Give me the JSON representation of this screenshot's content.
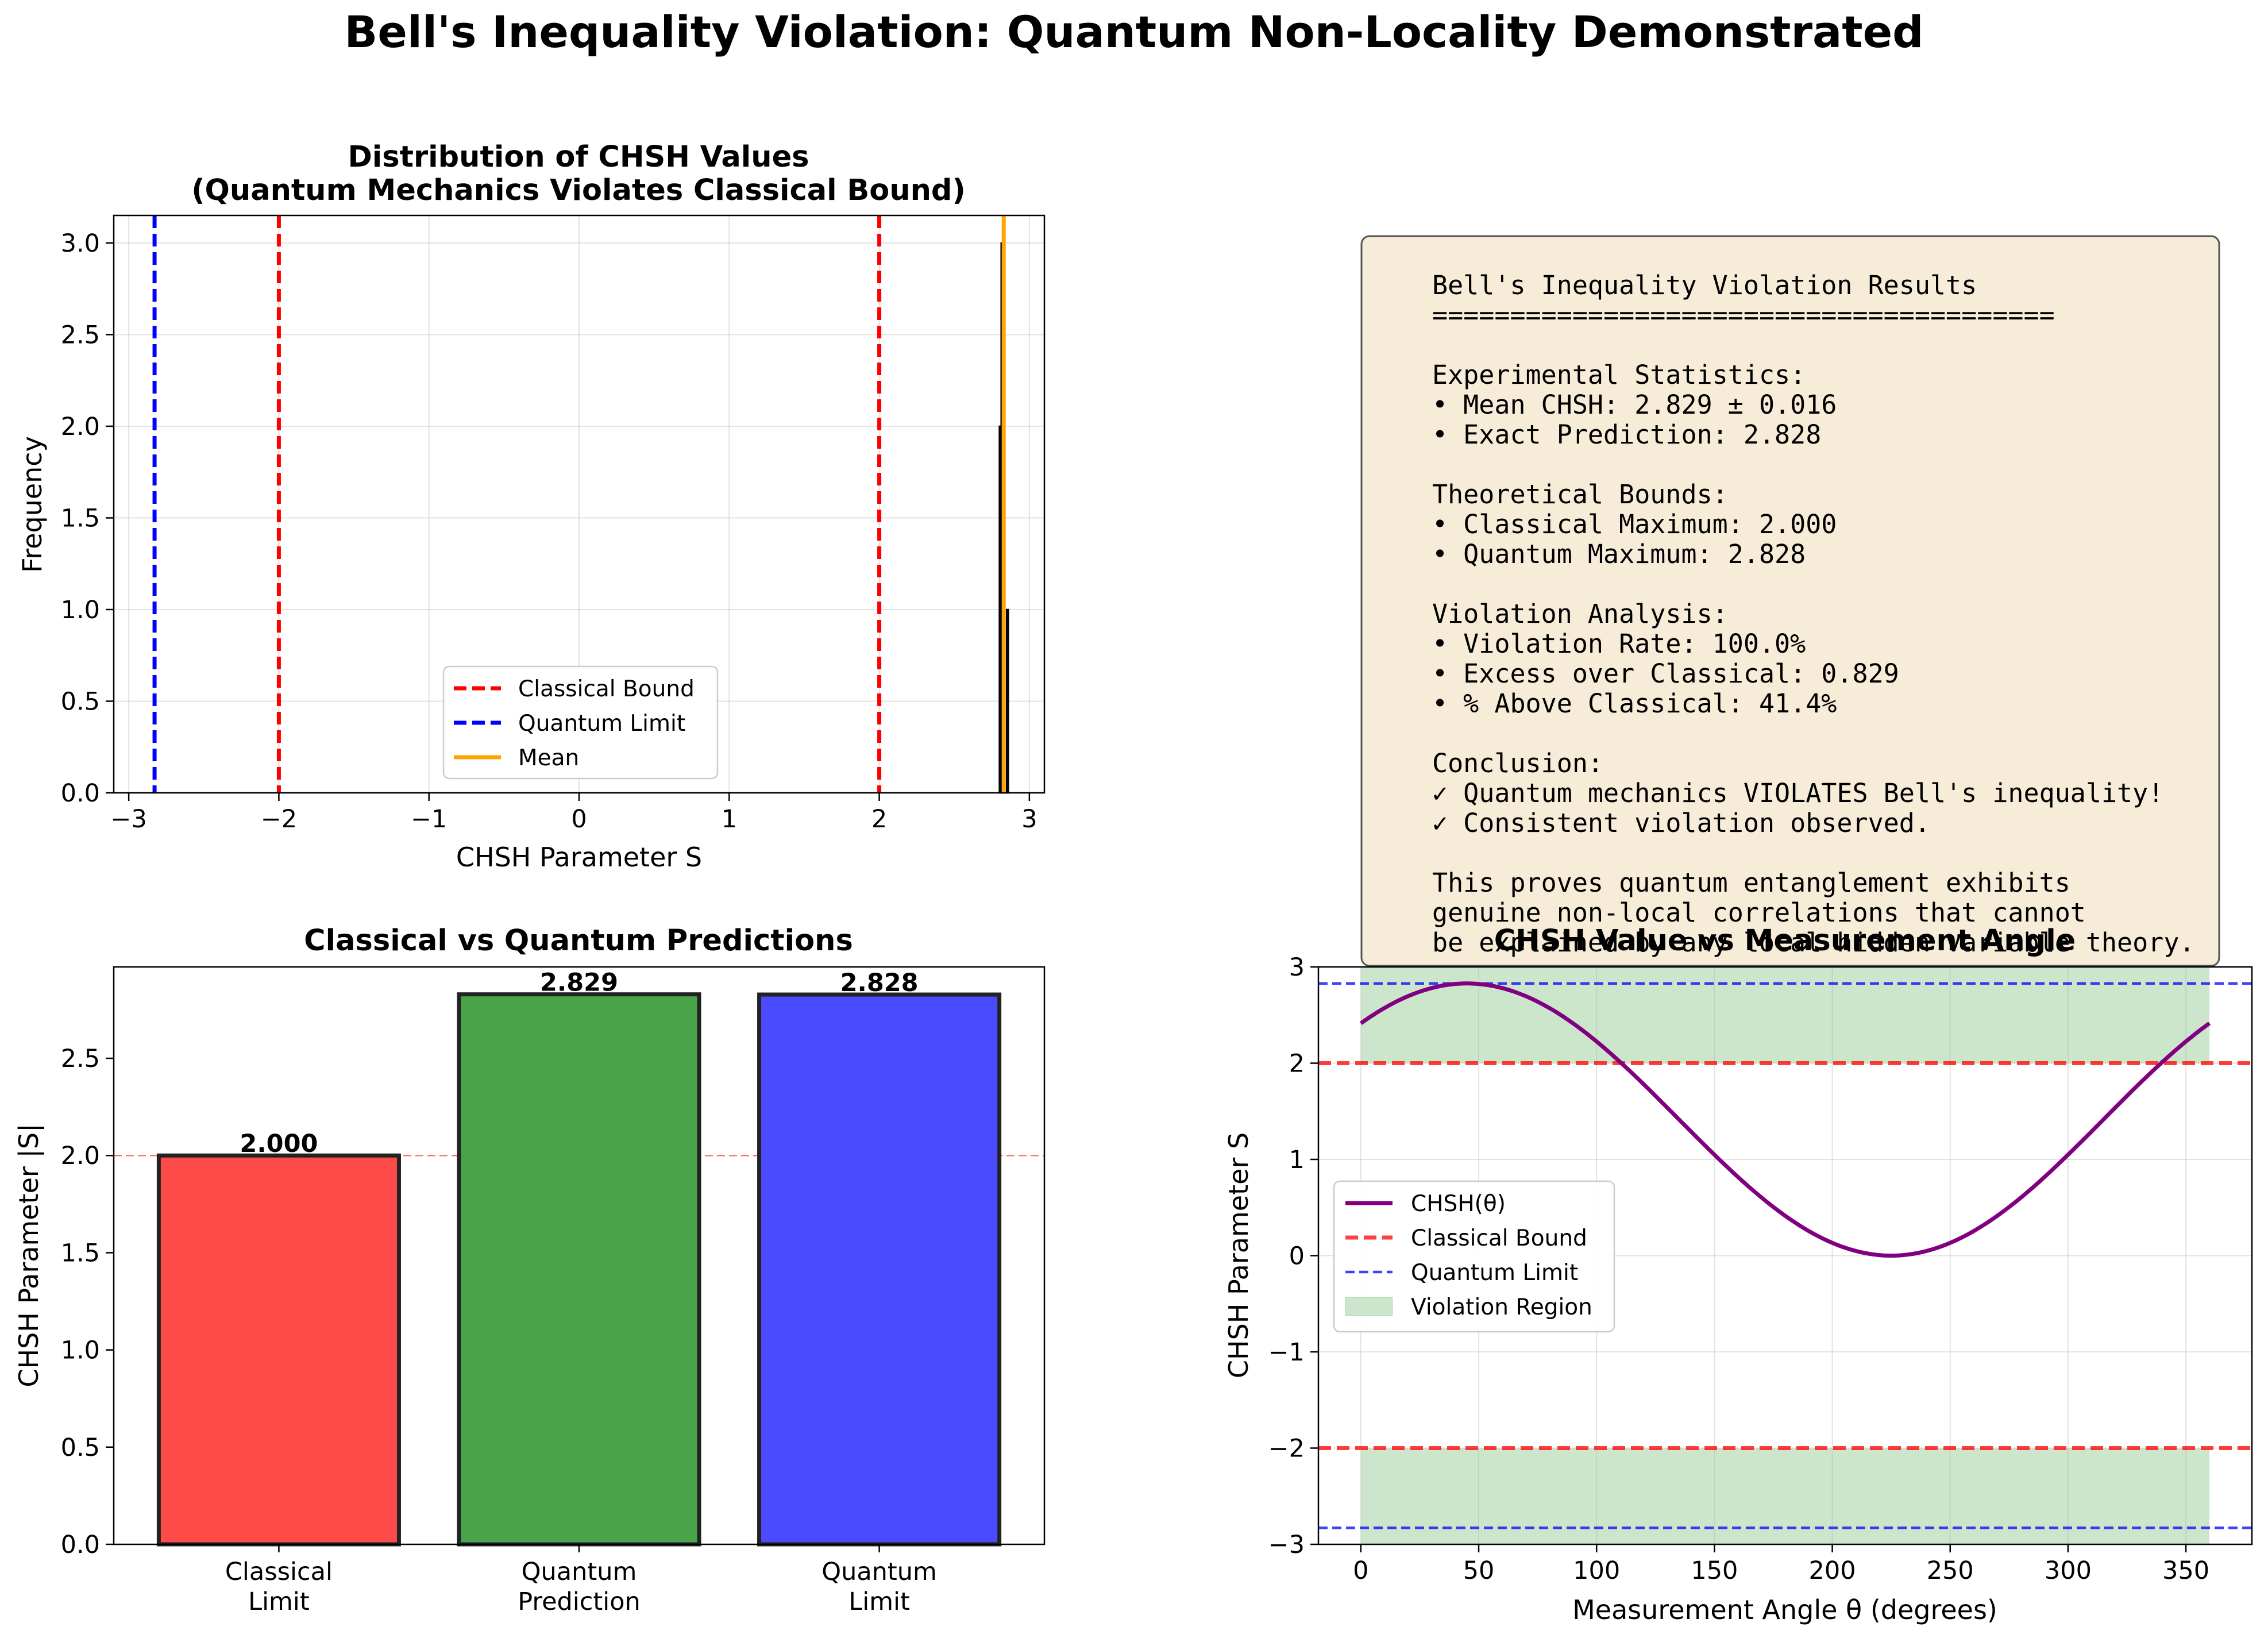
{
  "figure_title": "Bell's Inequality Violation: Quantum Non-Locality Demonstrated",
  "colors": {
    "classical": "#ff0000",
    "quantum": "#0000ff",
    "mean": "#ffa500",
    "curve": "#800080",
    "violation_fill": "#008000",
    "bar_classical": "#ff4a4a",
    "bar_prediction": "#4aa54a",
    "bar_limit": "#4a4aff",
    "info_bg": "#f7ecd8"
  },
  "chart_data": [
    {
      "type": "histogram",
      "title": "Distribution of CHSH Values",
      "subtitle": "(Quantum Mechanics Violates Classical Bound)",
      "xlabel": "CHSH Parameter S",
      "ylabel": "Frequency",
      "xlim": [
        -3.1,
        3.1
      ],
      "ylim": [
        0,
        3.15
      ],
      "xticks": [
        -3,
        -2,
        -1,
        0,
        1,
        2,
        3
      ],
      "yticks": [
        0.0,
        0.5,
        1.0,
        1.5,
        2.0,
        2.5,
        3.0
      ],
      "grid": true,
      "bins": [
        {
          "x0": 2.8,
          "x1": 2.812,
          "count": 2
        },
        {
          "x0": 2.812,
          "x1": 2.824,
          "count": 3
        },
        {
          "x0": 2.824,
          "x1": 2.836,
          "count": 3
        },
        {
          "x0": 2.836,
          "x1": 2.848,
          "count": 0
        },
        {
          "x0": 2.848,
          "x1": 2.86,
          "count": 1
        }
      ],
      "vlines": [
        {
          "x": -2.0,
          "series": "Classical Bound",
          "style": "dashed"
        },
        {
          "x": 2.0,
          "series": "Classical Bound",
          "style": "dashed"
        },
        {
          "x": -2.828,
          "series": "Quantum Limit",
          "style": "dashed"
        },
        {
          "x": 2.829,
          "series": "Mean",
          "style": "solid"
        }
      ],
      "legend": [
        "Classical Bound",
        "Quantum Limit",
        "Mean"
      ],
      "legend_position": "lower-center"
    },
    {
      "type": "bar",
      "title": "Classical vs Quantum Predictions",
      "ylabel": "CHSH Parameter |S|",
      "categories": [
        [
          "Classical",
          "Limit"
        ],
        [
          "Quantum",
          "Prediction"
        ],
        [
          "Quantum",
          "Limit"
        ]
      ],
      "values": [
        2.0,
        2.829,
        2.828
      ],
      "value_labels": [
        "2.000",
        "2.829",
        "2.828"
      ],
      "ylim": [
        0,
        2.97
      ],
      "yticks": [
        0.0,
        0.5,
        1.0,
        1.5,
        2.0,
        2.5
      ],
      "hline": 2.0
    },
    {
      "type": "line",
      "title": "CHSH Value vs Measurement Angle",
      "xlabel": "Measurement Angle θ (degrees)",
      "ylabel": "CHSH Parameter S",
      "function": "1.414 + 1.414*cos(θ - 45°)",
      "x_range": [
        0,
        360
      ],
      "x": [
        0,
        45,
        90,
        135,
        180,
        225,
        270,
        315,
        360
      ],
      "y": [
        2.414,
        2.828,
        2.414,
        1.414,
        0.414,
        0.0,
        0.414,
        1.414,
        2.414
      ],
      "xlim": [
        -18,
        378
      ],
      "ylim": [
        -3,
        3
      ],
      "xticks": [
        0,
        50,
        100,
        150,
        200,
        250,
        300,
        350
      ],
      "yticks": [
        -3,
        -2,
        -1,
        0,
        1,
        2,
        3
      ],
      "hlines": [
        {
          "y": 2,
          "series": "Classical Bound"
        },
        {
          "y": -2,
          "series": "Classical Bound"
        },
        {
          "y": 2.828,
          "series": "Quantum Limit"
        },
        {
          "y": -2.828,
          "series": "Quantum Limit"
        }
      ],
      "violation_bands": [
        [
          2,
          3
        ],
        [
          -3,
          -2
        ]
      ],
      "legend": [
        "CHSH(θ)",
        "Classical Bound",
        "Quantum Limit",
        "Violation Region"
      ],
      "legend_position": "center-left",
      "grid": true
    }
  ],
  "info_box": {
    "lines": [
      "Bell's Inequality Violation Results",
      "========================================",
      "",
      "Experimental Statistics:",
      "• Mean CHSH:        2.829 ± 0.016",
      "• Exact Prediction: 2.828",
      "",
      "Theoretical Bounds:",
      "• Classical Maximum:  2.000",
      "• Quantum Maximum:    2.828",
      "",
      "Violation Analysis:",
      "• Violation Rate:     100.0%",
      "• Excess over Classical: 0.829",
      "• % Above Classical:  41.4%",
      "",
      "Conclusion:",
      "✓ Quantum mechanics VIOLATES Bell's inequality!",
      "✓ Consistent violation observed.",
      "",
      "This proves quantum entanglement exhibits",
      "genuine non-local correlations that cannot",
      "be explained by any local hidden variable theory."
    ]
  }
}
